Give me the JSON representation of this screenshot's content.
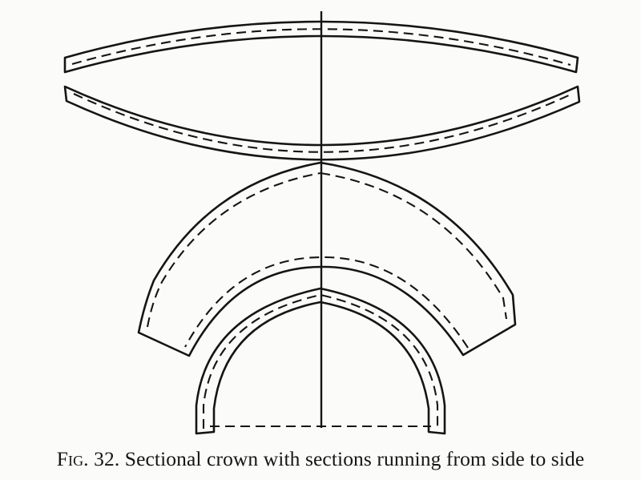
{
  "caption": {
    "figure_label": "Fig. 32.",
    "text": "Sectional crown with sections running from side to side"
  },
  "colors": {
    "paper": "#fbfbf9",
    "ink": "#151515"
  }
}
